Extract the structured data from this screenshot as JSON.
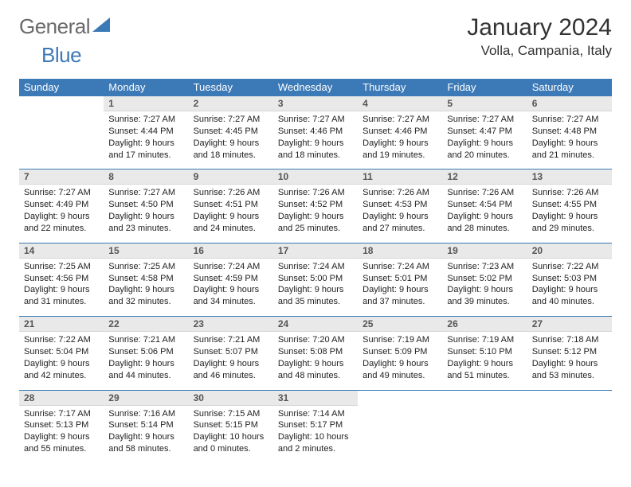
{
  "logo": {
    "word1": "General",
    "word2": "Blue"
  },
  "header": {
    "title": "January 2024",
    "location": "Volla, Campania, Italy"
  },
  "colors": {
    "accent": "#3b79b7",
    "dayHeaderBg": "#e9e9e9",
    "text": "#222222"
  },
  "weekdays": [
    "Sunday",
    "Monday",
    "Tuesday",
    "Wednesday",
    "Thursday",
    "Friday",
    "Saturday"
  ],
  "layout": {
    "firstWeekdayIndex": 1,
    "daysInMonth": 31,
    "rows": 5,
    "cols": 7
  },
  "days": {
    "1": {
      "sunrise": "Sunrise: 7:27 AM",
      "sunset": "Sunset: 4:44 PM",
      "daylight": "Daylight: 9 hours and 17 minutes."
    },
    "2": {
      "sunrise": "Sunrise: 7:27 AM",
      "sunset": "Sunset: 4:45 PM",
      "daylight": "Daylight: 9 hours and 18 minutes."
    },
    "3": {
      "sunrise": "Sunrise: 7:27 AM",
      "sunset": "Sunset: 4:46 PM",
      "daylight": "Daylight: 9 hours and 18 minutes."
    },
    "4": {
      "sunrise": "Sunrise: 7:27 AM",
      "sunset": "Sunset: 4:46 PM",
      "daylight": "Daylight: 9 hours and 19 minutes."
    },
    "5": {
      "sunrise": "Sunrise: 7:27 AM",
      "sunset": "Sunset: 4:47 PM",
      "daylight": "Daylight: 9 hours and 20 minutes."
    },
    "6": {
      "sunrise": "Sunrise: 7:27 AM",
      "sunset": "Sunset: 4:48 PM",
      "daylight": "Daylight: 9 hours and 21 minutes."
    },
    "7": {
      "sunrise": "Sunrise: 7:27 AM",
      "sunset": "Sunset: 4:49 PM",
      "daylight": "Daylight: 9 hours and 22 minutes."
    },
    "8": {
      "sunrise": "Sunrise: 7:27 AM",
      "sunset": "Sunset: 4:50 PM",
      "daylight": "Daylight: 9 hours and 23 minutes."
    },
    "9": {
      "sunrise": "Sunrise: 7:26 AM",
      "sunset": "Sunset: 4:51 PM",
      "daylight": "Daylight: 9 hours and 24 minutes."
    },
    "10": {
      "sunrise": "Sunrise: 7:26 AM",
      "sunset": "Sunset: 4:52 PM",
      "daylight": "Daylight: 9 hours and 25 minutes."
    },
    "11": {
      "sunrise": "Sunrise: 7:26 AM",
      "sunset": "Sunset: 4:53 PM",
      "daylight": "Daylight: 9 hours and 27 minutes."
    },
    "12": {
      "sunrise": "Sunrise: 7:26 AM",
      "sunset": "Sunset: 4:54 PM",
      "daylight": "Daylight: 9 hours and 28 minutes."
    },
    "13": {
      "sunrise": "Sunrise: 7:26 AM",
      "sunset": "Sunset: 4:55 PM",
      "daylight": "Daylight: 9 hours and 29 minutes."
    },
    "14": {
      "sunrise": "Sunrise: 7:25 AM",
      "sunset": "Sunset: 4:56 PM",
      "daylight": "Daylight: 9 hours and 31 minutes."
    },
    "15": {
      "sunrise": "Sunrise: 7:25 AM",
      "sunset": "Sunset: 4:58 PM",
      "daylight": "Daylight: 9 hours and 32 minutes."
    },
    "16": {
      "sunrise": "Sunrise: 7:24 AM",
      "sunset": "Sunset: 4:59 PM",
      "daylight": "Daylight: 9 hours and 34 minutes."
    },
    "17": {
      "sunrise": "Sunrise: 7:24 AM",
      "sunset": "Sunset: 5:00 PM",
      "daylight": "Daylight: 9 hours and 35 minutes."
    },
    "18": {
      "sunrise": "Sunrise: 7:24 AM",
      "sunset": "Sunset: 5:01 PM",
      "daylight": "Daylight: 9 hours and 37 minutes."
    },
    "19": {
      "sunrise": "Sunrise: 7:23 AM",
      "sunset": "Sunset: 5:02 PM",
      "daylight": "Daylight: 9 hours and 39 minutes."
    },
    "20": {
      "sunrise": "Sunrise: 7:22 AM",
      "sunset": "Sunset: 5:03 PM",
      "daylight": "Daylight: 9 hours and 40 minutes."
    },
    "21": {
      "sunrise": "Sunrise: 7:22 AM",
      "sunset": "Sunset: 5:04 PM",
      "daylight": "Daylight: 9 hours and 42 minutes."
    },
    "22": {
      "sunrise": "Sunrise: 7:21 AM",
      "sunset": "Sunset: 5:06 PM",
      "daylight": "Daylight: 9 hours and 44 minutes."
    },
    "23": {
      "sunrise": "Sunrise: 7:21 AM",
      "sunset": "Sunset: 5:07 PM",
      "daylight": "Daylight: 9 hours and 46 minutes."
    },
    "24": {
      "sunrise": "Sunrise: 7:20 AM",
      "sunset": "Sunset: 5:08 PM",
      "daylight": "Daylight: 9 hours and 48 minutes."
    },
    "25": {
      "sunrise": "Sunrise: 7:19 AM",
      "sunset": "Sunset: 5:09 PM",
      "daylight": "Daylight: 9 hours and 49 minutes."
    },
    "26": {
      "sunrise": "Sunrise: 7:19 AM",
      "sunset": "Sunset: 5:10 PM",
      "daylight": "Daylight: 9 hours and 51 minutes."
    },
    "27": {
      "sunrise": "Sunrise: 7:18 AM",
      "sunset": "Sunset: 5:12 PM",
      "daylight": "Daylight: 9 hours and 53 minutes."
    },
    "28": {
      "sunrise": "Sunrise: 7:17 AM",
      "sunset": "Sunset: 5:13 PM",
      "daylight": "Daylight: 9 hours and 55 minutes."
    },
    "29": {
      "sunrise": "Sunrise: 7:16 AM",
      "sunset": "Sunset: 5:14 PM",
      "daylight": "Daylight: 9 hours and 58 minutes."
    },
    "30": {
      "sunrise": "Sunrise: 7:15 AM",
      "sunset": "Sunset: 5:15 PM",
      "daylight": "Daylight: 10 hours and 0 minutes."
    },
    "31": {
      "sunrise": "Sunrise: 7:14 AM",
      "sunset": "Sunset: 5:17 PM",
      "daylight": "Daylight: 10 hours and 2 minutes."
    }
  }
}
